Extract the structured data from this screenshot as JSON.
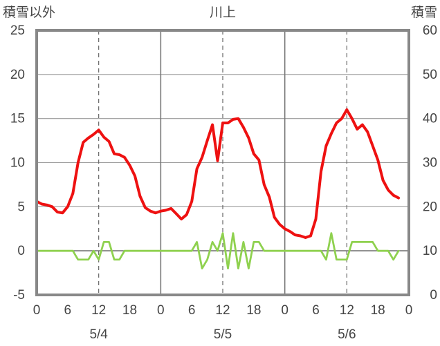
{
  "chart_data": {
    "type": "line",
    "title": "川上",
    "left_axis": {
      "label": "積雪以外",
      "ylim": [
        -5,
        25
      ],
      "ticks": [
        25,
        20,
        15,
        10,
        5,
        0,
        -5
      ]
    },
    "right_axis": {
      "label": "積雪",
      "ylim": [
        0,
        60
      ],
      "ticks": [
        60,
        50,
        40,
        30,
        20,
        10,
        0
      ]
    },
    "x_hour_ticks": [
      "0",
      "6",
      "12",
      "18",
      "0",
      "6",
      "12",
      "18",
      "0",
      "6",
      "12",
      "18",
      "0"
    ],
    "dates": [
      "5/4",
      "5/5",
      "5/6"
    ],
    "grid": true,
    "series": [
      {
        "color": "#ee1111",
        "axis": "left",
        "x": [
          0,
          1,
          2,
          3,
          4,
          5,
          6,
          7,
          8,
          9,
          10,
          11,
          12,
          13,
          14,
          15,
          16,
          17,
          18,
          19,
          20,
          21,
          22,
          23,
          24,
          25,
          26,
          27,
          28,
          29,
          30,
          31,
          32,
          33,
          34,
          35,
          36,
          37,
          38,
          39,
          40,
          41,
          42,
          43,
          44,
          45,
          46,
          47,
          48,
          49,
          50,
          51,
          52,
          53,
          54,
          55,
          56,
          57,
          58,
          59,
          60,
          61,
          62,
          63,
          64,
          65,
          66,
          67,
          68,
          69,
          70
        ],
        "y": [
          5.6,
          5.3,
          5.2,
          5.0,
          4.4,
          4.3,
          5.0,
          6.5,
          10.0,
          12.3,
          12.8,
          13.2,
          13.7,
          12.9,
          12.4,
          11.0,
          10.9,
          10.6,
          9.7,
          8.5,
          6.2,
          4.9,
          4.5,
          4.3,
          4.5,
          4.6,
          4.8,
          4.2,
          3.6,
          4.1,
          5.6,
          9.3,
          10.6,
          12.5,
          14.3,
          10.2,
          14.5,
          14.5,
          14.9,
          15.0,
          14.0,
          12.8,
          11.0,
          10.3,
          7.5,
          6.1,
          3.8,
          3.0,
          2.5,
          2.2,
          1.8,
          1.7,
          1.5,
          1.7,
          3.6,
          9.0,
          11.9,
          13.3,
          14.5,
          15.0,
          16.0,
          15.0,
          13.8,
          14.3,
          13.5,
          11.9,
          10.3,
          8.0,
          6.9,
          6.3,
          6.0
        ]
      },
      {
        "color": "#8fd14f",
        "axis": "left",
        "x": [
          0,
          1,
          2,
          3,
          4,
          5,
          6,
          7,
          8,
          9,
          10,
          11,
          12,
          13,
          14,
          15,
          16,
          17,
          18,
          19,
          20,
          21,
          22,
          23,
          24,
          25,
          26,
          27,
          28,
          29,
          30,
          31,
          32,
          33,
          34,
          35,
          36,
          37,
          38,
          39,
          40,
          41,
          42,
          43,
          44,
          45,
          46,
          47,
          48,
          49,
          50,
          51,
          52,
          53,
          54,
          55,
          56,
          57,
          58,
          59,
          60,
          61,
          62,
          63,
          64,
          65,
          66,
          67,
          68,
          69,
          70
        ],
        "y": [
          0,
          0,
          0,
          0,
          0,
          0,
          0,
          0,
          -1,
          -1,
          -1,
          0,
          -1,
          1,
          1,
          -1,
          -1,
          0,
          0,
          0,
          0,
          0,
          0,
          0,
          0,
          0,
          0,
          0,
          0,
          0,
          0,
          1,
          -2,
          -1,
          1,
          0,
          2,
          -2,
          2,
          -2,
          1,
          -2,
          1,
          1,
          0,
          0,
          0,
          0,
          0,
          0,
          0,
          0,
          0,
          0,
          0,
          0,
          -1,
          2,
          -1,
          -1,
          -1,
          1,
          1,
          1,
          1,
          1,
          0,
          0,
          0,
          -1,
          0
        ]
      },
      {
        "color": "#7030a0",
        "axis": "right",
        "x": [
          0,
          70
        ],
        "y": [
          0,
          0
        ]
      }
    ]
  }
}
